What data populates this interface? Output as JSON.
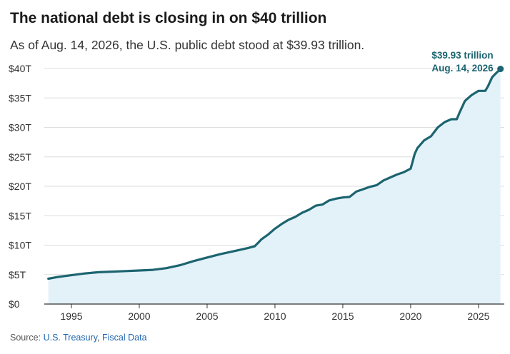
{
  "header": {
    "title": "The national debt is closing in on $40 trillion",
    "subtitle": "As of Aug. 14, 2026, the U.S. public debt stood at $39.93 trillion."
  },
  "source": {
    "prefix": "Source: ",
    "link1": "U.S. Treasury",
    "separator": ", ",
    "link2": "Fiscal Data"
  },
  "colors": {
    "line": "#1c6470",
    "fill": "#e3f2f9",
    "grid": "#dddddd",
    "axis": "#333333",
    "callout": "#1c6470"
  },
  "chart_data": {
    "type": "area",
    "title": "The national debt is closing in on $40 trillion",
    "xlabel": "",
    "ylabel": "",
    "unit": "trillion USD",
    "xlim": [
      1993,
      2026.9
    ],
    "ylim": [
      0,
      40
    ],
    "grid": true,
    "x_ticks": [
      1995,
      2000,
      2005,
      2010,
      2015,
      2020,
      2025
    ],
    "x_tick_labels": [
      "1995",
      "2000",
      "2005",
      "2010",
      "2015",
      "2020",
      "2025"
    ],
    "y_ticks": [
      0,
      5,
      10,
      15,
      20,
      25,
      30,
      35,
      40
    ],
    "y_tick_labels": [
      "$0",
      "$5T",
      "$10T",
      "$15T",
      "$20T",
      "$25T",
      "$30T",
      "$35T",
      "$40T"
    ],
    "series": [
      {
        "x": [
          1993.3,
          1994,
          1995,
          1996,
          1997,
          1998,
          1999,
          2000,
          2001,
          2002,
          2003,
          2004,
          2005,
          2006,
          2007,
          2008,
          2008.5,
          2008.8,
          2009,
          2009.5,
          2010,
          2010.5,
          2011,
          2011.5,
          2012,
          2012.5,
          2013,
          2013.5,
          2014,
          2014.5,
          2015,
          2015.5,
          2016,
          2016.5,
          2017,
          2017.5,
          2018,
          2018.5,
          2019,
          2019.5,
          2020,
          2020.1,
          2020.3,
          2020.5,
          2021,
          2021.5,
          2022,
          2022.5,
          2023,
          2023.4,
          2023.6,
          2024,
          2024.5,
          2025,
          2025.5,
          2025.7,
          2026,
          2026.2,
          2026.62
        ],
        "y": [
          4.3,
          4.6,
          4.9,
          5.2,
          5.4,
          5.5,
          5.6,
          5.7,
          5.8,
          6.1,
          6.6,
          7.3,
          7.9,
          8.5,
          9.0,
          9.5,
          9.8,
          10.5,
          11.0,
          11.8,
          12.8,
          13.6,
          14.3,
          14.8,
          15.5,
          16.0,
          16.7,
          16.9,
          17.6,
          17.9,
          18.1,
          18.2,
          19.1,
          19.5,
          19.9,
          20.2,
          21.0,
          21.5,
          22.0,
          22.4,
          23.0,
          23.8,
          25.5,
          26.5,
          27.8,
          28.5,
          30.0,
          30.9,
          31.4,
          31.4,
          32.5,
          34.5,
          35.5,
          36.2,
          36.2,
          37.0,
          38.5,
          39.0,
          39.93
        ]
      }
    ],
    "annotation": {
      "value_label": "$39.93 trillion",
      "date_label": "Aug. 14, 2026",
      "x": 2026.62,
      "y": 39.93
    }
  }
}
